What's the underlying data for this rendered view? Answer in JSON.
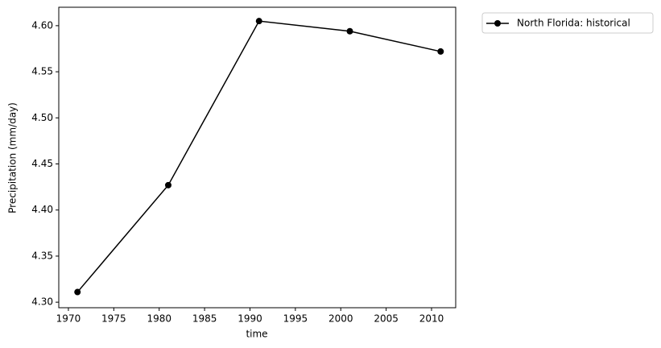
{
  "chart_data": {
    "type": "line",
    "xlabel": "time",
    "ylabel": "Precipitation (mm/day)",
    "x": [
      1971,
      1981,
      1991,
      2001,
      2011
    ],
    "series": [
      {
        "name": "North Florida: historical",
        "color": "#000000",
        "values": [
          4.311,
          4.427,
          4.605,
          4.594,
          4.572
        ]
      }
    ],
    "xlim": [
      1968.94,
      2012.66
    ],
    "xticks": [
      1970,
      1975,
      1980,
      1985,
      1990,
      1995,
      2000,
      2005,
      2010
    ],
    "ylim": [
      4.294,
      4.62
    ],
    "yticks": [
      {
        "value": 4.3,
        "label": "4.30"
      },
      {
        "value": 4.35,
        "label": "4.35"
      },
      {
        "value": 4.4,
        "label": "4.40"
      },
      {
        "value": 4.45,
        "label": "4.45"
      },
      {
        "value": 4.5,
        "label": "4.50"
      },
      {
        "value": 4.55,
        "label": "4.55"
      },
      {
        "value": 4.6,
        "label": "4.60"
      }
    ],
    "grid": false,
    "legend": "outside-upper-right"
  }
}
